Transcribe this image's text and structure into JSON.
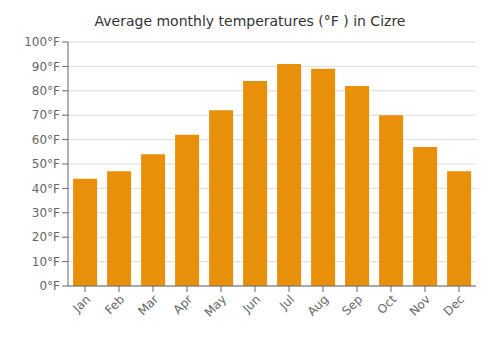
{
  "chart_data": {
    "type": "bar",
    "title": "Average monthly temperatures (°F ) in Cizre",
    "categories": [
      "Jan",
      "Feb",
      "Mar",
      "Apr",
      "May",
      "Jun",
      "Jul",
      "Aug",
      "Sep",
      "Oct",
      "Nov",
      "Dec"
    ],
    "values": [
      44,
      47,
      54,
      62,
      72,
      84,
      91,
      89,
      82,
      70,
      57,
      47
    ],
    "color": "#E8900A",
    "ylim": [
      0,
      100
    ],
    "yticks": [
      {
        "value": 0,
        "label": "0°F"
      },
      {
        "value": 10,
        "label": "10°F"
      },
      {
        "value": 20,
        "label": "20°F"
      },
      {
        "value": 30,
        "label": "30°F"
      },
      {
        "value": 40,
        "label": "40°F"
      },
      {
        "value": 50,
        "label": "50°F"
      },
      {
        "value": 60,
        "label": "60°F"
      },
      {
        "value": 70,
        "label": "70°F"
      },
      {
        "value": 80,
        "label": "80°F"
      },
      {
        "value": 90,
        "label": "90°F"
      },
      {
        "value": 100,
        "label": "100°F"
      }
    ],
    "grid": true
  }
}
